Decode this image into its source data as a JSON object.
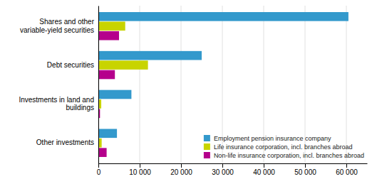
{
  "chart_data": {
    "type": "bar",
    "orientation": "horizontal",
    "categories": [
      "Shares and other variable-yield securities",
      "Debt securities",
      "Investments in land and buildings",
      "Other investments"
    ],
    "series": [
      {
        "name": "Employment pension insurance company",
        "color": "#3399cc",
        "values": [
          60500,
          25000,
          8000,
          4500
        ]
      },
      {
        "name": "Life insurance corporation, incl. branches abroad",
        "color": "#c8d400",
        "values": [
          6500,
          12000,
          700,
          800
        ]
      },
      {
        "name": "Non-life insurance corporation, incl. branches abroad",
        "color": "#b5008c",
        "values": [
          5000,
          4000,
          400,
          2000
        ]
      }
    ],
    "xlim": [
      0,
      65000
    ],
    "xticks": [
      0,
      {
        "value": 10000,
        "label": "10 000"
      },
      {
        "value": 20000,
        "label": "20 000"
      },
      {
        "value": 30000,
        "label": "30 000"
      },
      {
        "value": 40000,
        "label": "40 000"
      },
      {
        "value": 50000,
        "label": "50 000"
      },
      {
        "value": 60000,
        "label": "60 000"
      }
    ],
    "grid": true,
    "legend": "lower right"
  }
}
